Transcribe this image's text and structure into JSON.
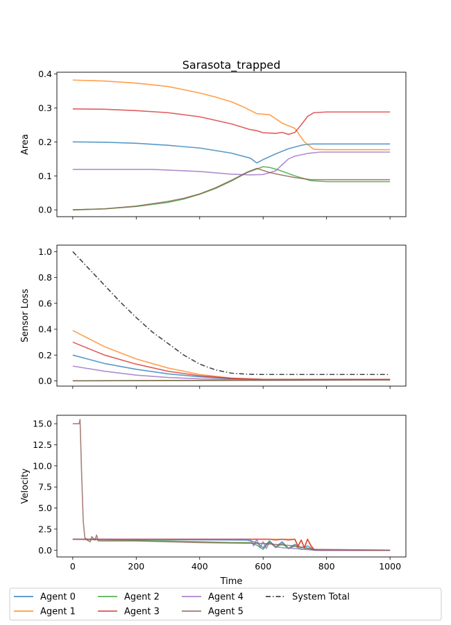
{
  "chart_data": [
    {
      "type": "line",
      "title": "Sarasota_trapped",
      "xlabel": "",
      "ylabel": "Area",
      "xlim": [
        -50,
        1050
      ],
      "ylim": [
        -0.02,
        0.405
      ],
      "yticks": [
        "0.0",
        "0.1",
        "0.2",
        "0.3",
        "0.4"
      ],
      "ytick_values": [
        0,
        0.1,
        0.2,
        0.3,
        0.4
      ],
      "series": [
        {
          "name": "Agent 0",
          "color": "#1f77b4",
          "x": [
            0,
            100,
            200,
            300,
            400,
            500,
            560,
            580,
            600,
            640,
            680,
            720,
            740,
            760,
            800,
            1000
          ],
          "y": [
            0.2,
            0.199,
            0.196,
            0.19,
            0.182,
            0.167,
            0.152,
            0.138,
            0.148,
            0.165,
            0.18,
            0.19,
            0.193,
            0.194,
            0.194,
            0.194
          ]
        },
        {
          "name": "Agent 1",
          "color": "#ff7f0e",
          "x": [
            0,
            100,
            200,
            300,
            400,
            450,
            500,
            540,
            580,
            620,
            640,
            660,
            700,
            730,
            760,
            800,
            1000
          ],
          "y": [
            0.382,
            0.379,
            0.373,
            0.363,
            0.344,
            0.332,
            0.318,
            0.302,
            0.283,
            0.28,
            0.268,
            0.255,
            0.24,
            0.2,
            0.178,
            0.177,
            0.177
          ]
        },
        {
          "name": "Agent 2",
          "color": "#2ca02c",
          "x": [
            0,
            100,
            200,
            300,
            350,
            400,
            450,
            500,
            550,
            600,
            620,
            650,
            700,
            750,
            800,
            1000
          ],
          "y": [
            0.0,
            0.003,
            0.01,
            0.022,
            0.032,
            0.046,
            0.063,
            0.085,
            0.11,
            0.127,
            0.125,
            0.117,
            0.1,
            0.086,
            0.083,
            0.083
          ]
        },
        {
          "name": "Agent 3",
          "color": "#d62728",
          "x": [
            0,
            100,
            200,
            300,
            400,
            500,
            560,
            580,
            600,
            640,
            660,
            680,
            700,
            720,
            740,
            760,
            800,
            1000
          ],
          "y": [
            0.297,
            0.296,
            0.292,
            0.286,
            0.274,
            0.253,
            0.236,
            0.233,
            0.227,
            0.225,
            0.228,
            0.222,
            0.228,
            0.25,
            0.275,
            0.286,
            0.288,
            0.288
          ]
        },
        {
          "name": "Agent 4",
          "color": "#9467bd",
          "x": [
            0,
            100,
            250,
            300,
            400,
            500,
            560,
            600,
            640,
            660,
            680,
            700,
            740,
            780,
            1000
          ],
          "y": [
            0.119,
            0.119,
            0.119,
            0.117,
            0.113,
            0.105,
            0.103,
            0.104,
            0.115,
            0.133,
            0.15,
            0.158,
            0.166,
            0.17,
            0.17
          ]
        },
        {
          "name": "Agent 5",
          "color": "#8c564b",
          "x": [
            0,
            100,
            200,
            300,
            350,
            400,
            450,
            500,
            550,
            580,
            600,
            620,
            650,
            700,
            750,
            800,
            1000
          ],
          "y": [
            0.0,
            0.003,
            0.011,
            0.025,
            0.034,
            0.047,
            0.065,
            0.087,
            0.111,
            0.122,
            0.116,
            0.11,
            0.104,
            0.095,
            0.089,
            0.089,
            0.089
          ]
        }
      ]
    },
    {
      "type": "line",
      "title": "",
      "xlabel": "",
      "ylabel": "Sensor Loss",
      "xlim": [
        -50,
        1050
      ],
      "ylim": [
        -0.04,
        1.05
      ],
      "yticks": [
        "0.0",
        "0.2",
        "0.4",
        "0.6",
        "0.8",
        "1.0"
      ],
      "ytick_values": [
        0,
        0.2,
        0.4,
        0.6,
        0.8,
        1.0
      ],
      "series": [
        {
          "name": "Agent 0",
          "color": "#1f77b4",
          "x": [
            0,
            100,
            200,
            300,
            400,
            500,
            600,
            1000
          ],
          "y": [
            0.2,
            0.135,
            0.09,
            0.055,
            0.032,
            0.018,
            0.012,
            0.012
          ]
        },
        {
          "name": "Agent 1",
          "color": "#ff7f0e",
          "x": [
            0,
            100,
            200,
            300,
            400,
            500,
            600,
            1000
          ],
          "y": [
            0.39,
            0.265,
            0.17,
            0.1,
            0.05,
            0.022,
            0.012,
            0.012
          ]
        },
        {
          "name": "Agent 2",
          "color": "#2ca02c",
          "x": [
            0,
            1000
          ],
          "y": [
            0.001,
            0.008
          ]
        },
        {
          "name": "Agent 3",
          "color": "#d62728",
          "x": [
            0,
            100,
            200,
            300,
            400,
            500,
            600,
            1000
          ],
          "y": [
            0.3,
            0.2,
            0.13,
            0.075,
            0.04,
            0.02,
            0.012,
            0.012
          ]
        },
        {
          "name": "Agent 4",
          "color": "#9467bd",
          "x": [
            0,
            100,
            200,
            300,
            400,
            500,
            600,
            1000
          ],
          "y": [
            0.115,
            0.075,
            0.045,
            0.027,
            0.016,
            0.012,
            0.01,
            0.01
          ]
        },
        {
          "name": "Agent 5",
          "color": "#8c564b",
          "x": [
            0,
            1000
          ],
          "y": [
            0.001,
            0.008
          ]
        },
        {
          "name": "System Total",
          "color": "#444444",
          "dash": true,
          "x": [
            0,
            50,
            100,
            150,
            200,
            250,
            300,
            350,
            400,
            450,
            500,
            550,
            600,
            1000
          ],
          "y": [
            1.0,
            0.87,
            0.74,
            0.61,
            0.49,
            0.38,
            0.29,
            0.2,
            0.13,
            0.085,
            0.06,
            0.052,
            0.05,
            0.05
          ]
        }
      ]
    },
    {
      "type": "line",
      "title": "",
      "xlabel": "Time",
      "ylabel": "Velocity",
      "xlim": [
        -50,
        1050
      ],
      "ylim": [
        -0.8,
        16.0
      ],
      "yticks": [
        "0.0",
        "2.5",
        "5.0",
        "7.5",
        "10.0",
        "12.5",
        "15.0"
      ],
      "ytick_values": [
        0,
        2.5,
        5,
        7.5,
        10,
        12.5,
        15
      ],
      "xticks": [
        "0",
        "200",
        "400",
        "600",
        "800",
        "1000"
      ],
      "xtick_values": [
        0,
        200,
        400,
        600,
        800,
        1000
      ],
      "series": [
        {
          "name": "Agent 0",
          "color": "#1f77b4",
          "x": [
            0,
            550,
            580,
            600,
            620,
            640,
            660,
            680,
            700,
            720,
            740,
            760,
            780,
            1000
          ],
          "y": [
            1.3,
            1.2,
            0.9,
            0.3,
            1.1,
            0.4,
            1.0,
            0.2,
            0.7,
            0.3,
            0.5,
            0.05,
            0.0,
            0.0
          ]
        },
        {
          "name": "Agent 1",
          "color": "#ff7f0e",
          "x": [
            0,
            560,
            600,
            640,
            680,
            700,
            710,
            720,
            730,
            740,
            750,
            760,
            770,
            1000
          ],
          "y": [
            1.3,
            1.3,
            1.3,
            1.3,
            1.3,
            1.3,
            0.4,
            1.2,
            0.3,
            1.3,
            0.5,
            0.1,
            0.0,
            0.0
          ]
        },
        {
          "name": "Agent 2",
          "color": "#2ca02c",
          "x": [
            0,
            300,
            500,
            560,
            580,
            600,
            620,
            640,
            660,
            680,
            700,
            720,
            740,
            760,
            1000
          ],
          "y": [
            1.3,
            1.1,
            0.9,
            0.9,
            0.6,
            0.1,
            1.0,
            0.3,
            0.8,
            0.2,
            0.5,
            0.1,
            0.2,
            0.0,
            0.0
          ]
        },
        {
          "name": "Agent 3",
          "color": "#d62728",
          "x": [
            0,
            600,
            620,
            640,
            660,
            680,
            700,
            710,
            720,
            730,
            740,
            750,
            760,
            770,
            1000
          ],
          "y": [
            1.3,
            1.3,
            1.3,
            1.2,
            1.3,
            1.2,
            1.3,
            0.5,
            1.2,
            0.3,
            1.3,
            0.6,
            0.1,
            0.0,
            0.0
          ]
        },
        {
          "name": "Agent 4",
          "color": "#9467bd",
          "x": [
            0,
            560,
            570,
            580,
            590,
            600,
            610,
            620,
            640,
            660,
            700,
            760,
            1000
          ],
          "y": [
            1.3,
            1.3,
            0.5,
            1.3,
            0.3,
            1.0,
            0.2,
            0.9,
            0.4,
            0.3,
            0.2,
            0.0,
            0.0
          ]
        },
        {
          "name": "Agent 5",
          "color": "#8c564b",
          "x": [
            0,
            20,
            23,
            28,
            33,
            38,
            45,
            55,
            60,
            70,
            75,
            80,
            200,
            400,
            600,
            700,
            760,
            1000
          ],
          "y": [
            15.0,
            15.0,
            15.5,
            9.0,
            3.5,
            1.5,
            1.2,
            1.0,
            1.6,
            1.2,
            1.8,
            1.1,
            1.1,
            0.9,
            0.8,
            0.5,
            0.1,
            0.0
          ]
        }
      ]
    }
  ],
  "legend": {
    "placement": "bottom-center",
    "entries": [
      {
        "label": "Agent 0",
        "color": "#1f77b4",
        "dash": false
      },
      {
        "label": "Agent 1",
        "color": "#ff7f0e",
        "dash": false
      },
      {
        "label": "Agent 2",
        "color": "#2ca02c",
        "dash": false
      },
      {
        "label": "Agent 3",
        "color": "#d62728",
        "dash": false
      },
      {
        "label": "Agent 4",
        "color": "#9467bd",
        "dash": false
      },
      {
        "label": "Agent 5",
        "color": "#8c564b",
        "dash": false
      },
      {
        "label": "System Total",
        "color": "#444444",
        "dash": true
      }
    ]
  }
}
